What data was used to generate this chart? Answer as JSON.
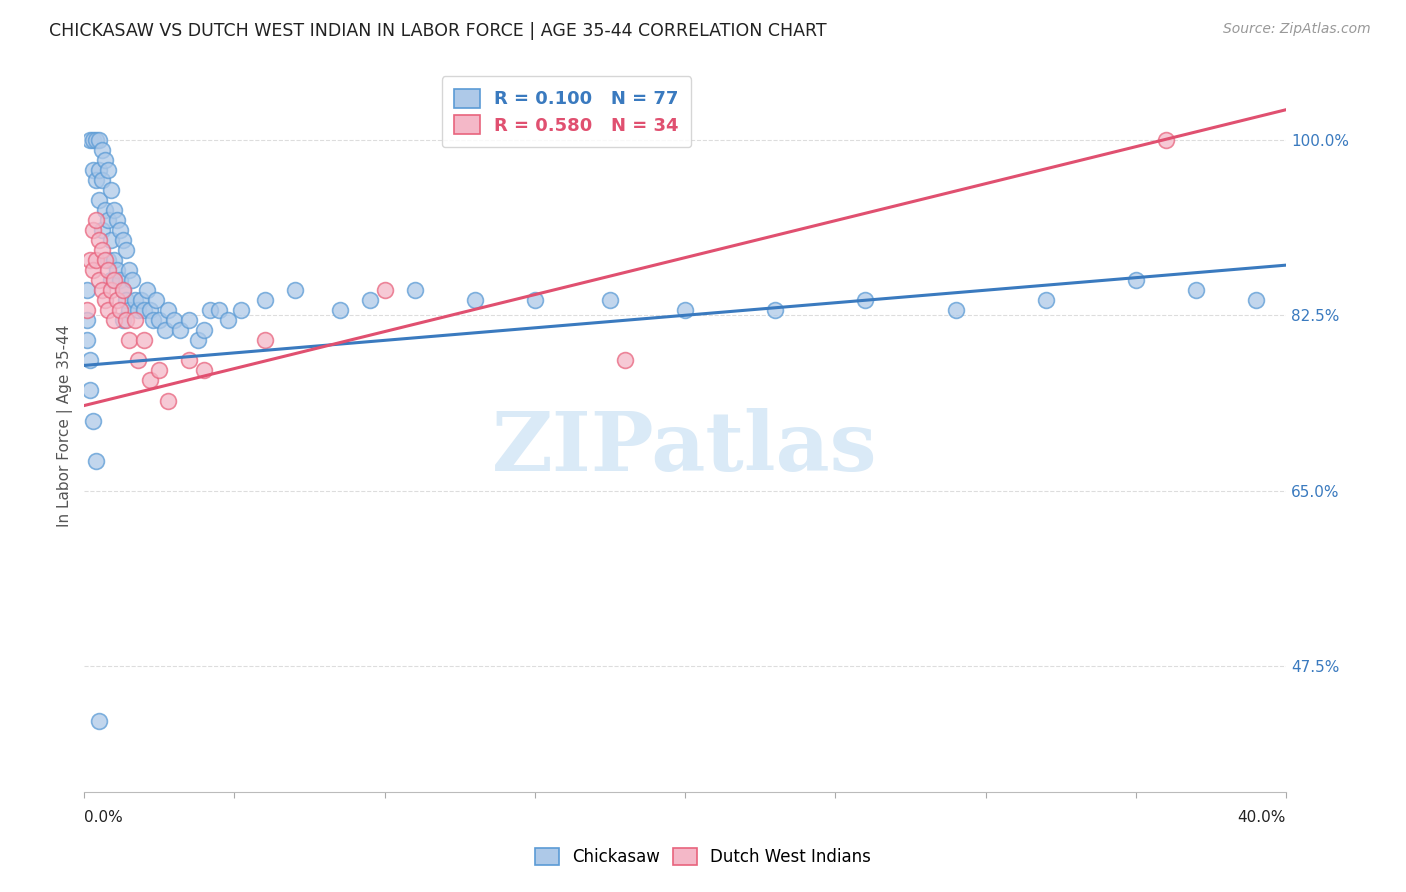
{
  "title": "CHICKASAW VS DUTCH WEST INDIAN IN LABOR FORCE | AGE 35-44 CORRELATION CHART",
  "source": "Source: ZipAtlas.com",
  "ylabel": "In Labor Force | Age 35-44",
  "legend_label1": "Chickasaw",
  "legend_label2": "Dutch West Indians",
  "r1": 0.1,
  "n1": 77,
  "r2": 0.58,
  "n2": 34,
  "color_blue_fill": "#aec9e8",
  "color_blue_edge": "#5b9bd5",
  "color_pink_fill": "#f4b8c8",
  "color_pink_edge": "#e8637d",
  "color_blue_line": "#3a7abf",
  "color_pink_line": "#e05070",
  "ytick_vals": [
    1.0,
    0.825,
    0.65,
    0.475
  ],
  "ytick_labels": [
    "100.0%",
    "82.5%",
    "65.0%",
    "47.5%"
  ],
  "xlim": [
    0.0,
    0.4
  ],
  "ylim": [
    0.35,
    1.08
  ],
  "trend_blue_x0": 0.0,
  "trend_blue_y0": 0.775,
  "trend_blue_x1": 0.4,
  "trend_blue_y1": 0.875,
  "trend_pink_x0": 0.0,
  "trend_pink_y0": 0.735,
  "trend_pink_x1": 0.4,
  "trend_pink_y1": 1.03,
  "watermark": "ZIPatlas",
  "watermark_color": "#daeaf7",
  "background_color": "#ffffff",
  "grid_color": "#dddddd",
  "chickasaw_x": [
    0.002,
    0.003,
    0.003,
    0.004,
    0.004,
    0.005,
    0.005,
    0.005,
    0.006,
    0.006,
    0.006,
    0.007,
    0.007,
    0.008,
    0.008,
    0.008,
    0.009,
    0.009,
    0.009,
    0.01,
    0.01,
    0.011,
    0.011,
    0.012,
    0.012,
    0.013,
    0.013,
    0.013,
    0.014,
    0.014,
    0.015,
    0.015,
    0.016,
    0.017,
    0.018,
    0.019,
    0.02,
    0.021,
    0.022,
    0.023,
    0.024,
    0.025,
    0.027,
    0.028,
    0.03,
    0.032,
    0.035,
    0.038,
    0.04,
    0.042,
    0.045,
    0.048,
    0.052,
    0.06,
    0.07,
    0.085,
    0.095,
    0.11,
    0.13,
    0.15,
    0.175,
    0.2,
    0.23,
    0.26,
    0.29,
    0.32,
    0.35,
    0.37,
    0.39,
    0.001,
    0.001,
    0.001,
    0.002,
    0.002,
    0.003,
    0.004,
    0.005
  ],
  "chickasaw_y": [
    1.0,
    1.0,
    0.97,
    1.0,
    0.96,
    1.0,
    0.97,
    0.94,
    0.99,
    0.96,
    0.91,
    0.98,
    0.93,
    0.97,
    0.92,
    0.88,
    0.95,
    0.9,
    0.86,
    0.93,
    0.88,
    0.92,
    0.87,
    0.91,
    0.86,
    0.9,
    0.85,
    0.82,
    0.89,
    0.84,
    0.87,
    0.83,
    0.86,
    0.84,
    0.83,
    0.84,
    0.83,
    0.85,
    0.83,
    0.82,
    0.84,
    0.82,
    0.81,
    0.83,
    0.82,
    0.81,
    0.82,
    0.8,
    0.81,
    0.83,
    0.83,
    0.82,
    0.83,
    0.84,
    0.85,
    0.83,
    0.84,
    0.85,
    0.84,
    0.84,
    0.84,
    0.83,
    0.83,
    0.84,
    0.83,
    0.84,
    0.86,
    0.85,
    0.84,
    0.8,
    0.85,
    0.82,
    0.78,
    0.75,
    0.72,
    0.68,
    0.42
  ],
  "dutch_x": [
    0.001,
    0.002,
    0.003,
    0.003,
    0.004,
    0.004,
    0.005,
    0.005,
    0.006,
    0.006,
    0.007,
    0.007,
    0.008,
    0.008,
    0.009,
    0.01,
    0.01,
    0.011,
    0.012,
    0.013,
    0.014,
    0.015,
    0.017,
    0.018,
    0.02,
    0.022,
    0.025,
    0.028,
    0.035,
    0.04,
    0.06,
    0.1,
    0.18,
    0.36
  ],
  "dutch_y": [
    0.83,
    0.88,
    0.91,
    0.87,
    0.92,
    0.88,
    0.9,
    0.86,
    0.89,
    0.85,
    0.88,
    0.84,
    0.87,
    0.83,
    0.85,
    0.86,
    0.82,
    0.84,
    0.83,
    0.85,
    0.82,
    0.8,
    0.82,
    0.78,
    0.8,
    0.76,
    0.77,
    0.74,
    0.78,
    0.77,
    0.8,
    0.85,
    0.78,
    1.0
  ]
}
